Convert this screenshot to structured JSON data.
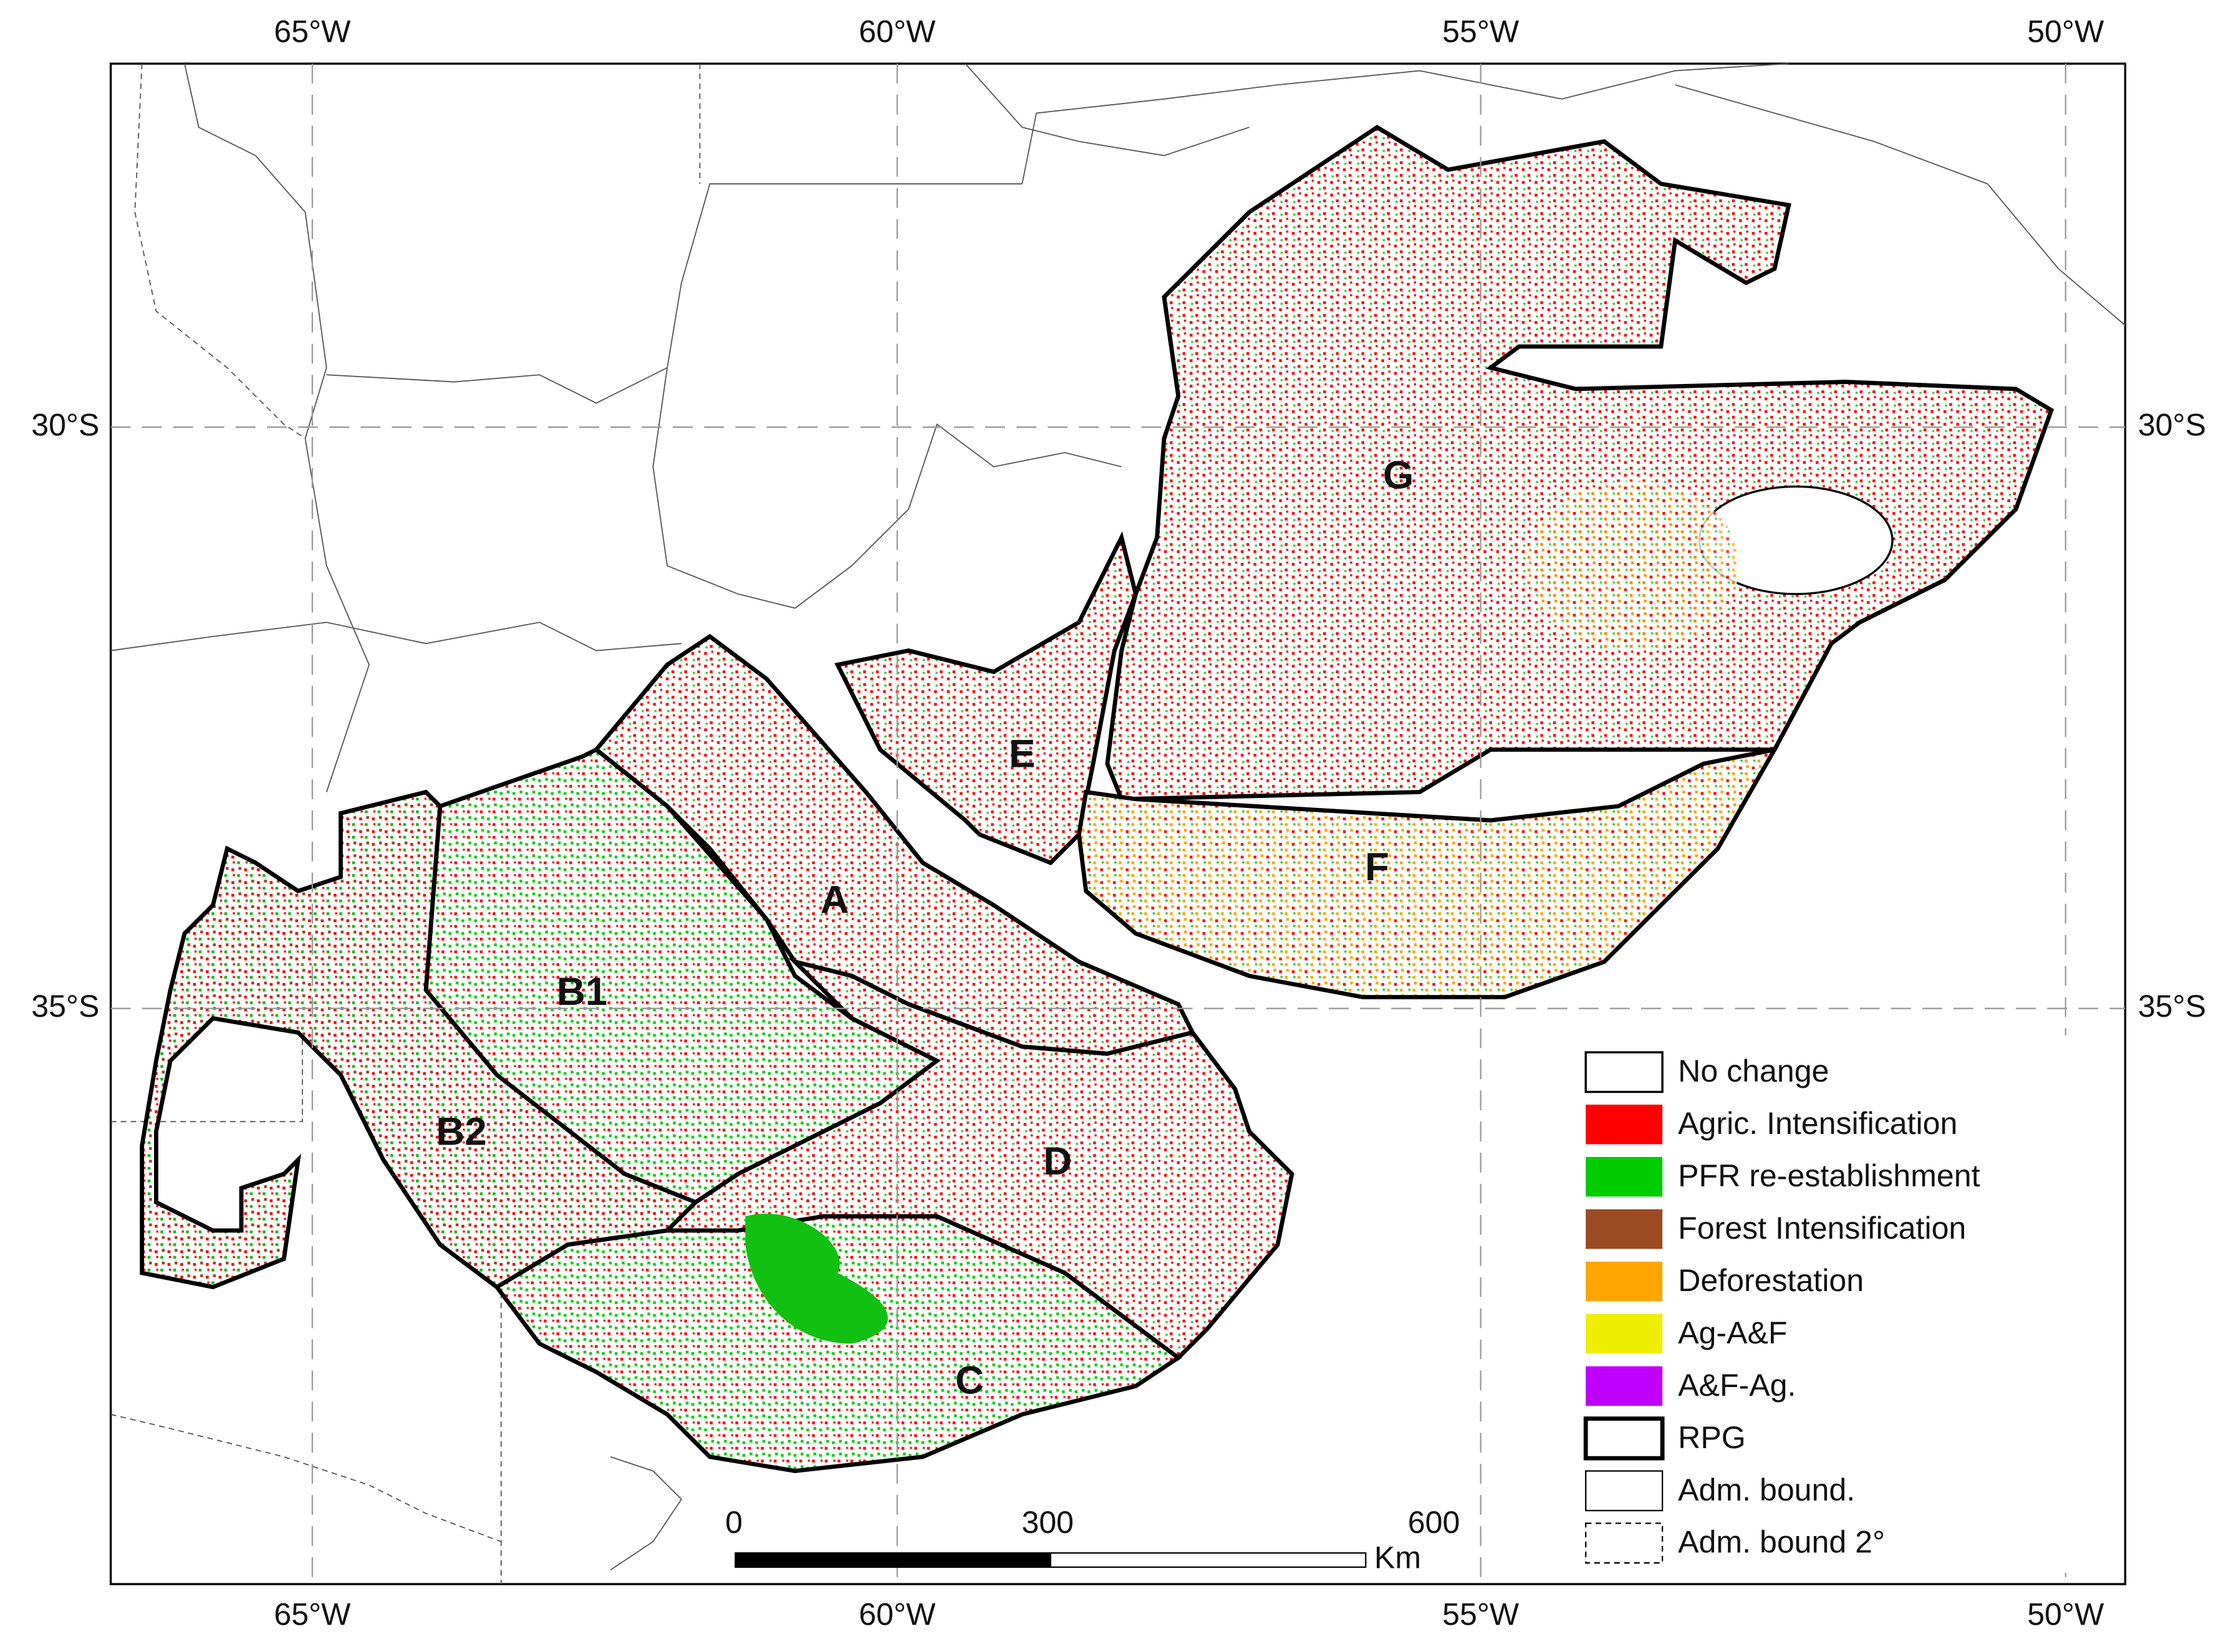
{
  "longitudes": [
    "65°W",
    "60°W",
    "55°W",
    "50°W"
  ],
  "latitudes": [
    "30°S",
    "35°S"
  ],
  "regions": [
    "G",
    "E",
    "F",
    "A",
    "B1",
    "B2",
    "D",
    "C"
  ],
  "legend": [
    {
      "label": "No change",
      "color": "#ffffff"
    },
    {
      "label": "Agric. Intensification",
      "color": "#ff0000"
    },
    {
      "label": "PFR re-establishment",
      "color": "#00cc00"
    },
    {
      "label": "Forest Intensification",
      "color": "#9c4a22"
    },
    {
      "label": "Deforestation",
      "color": "#ffa500"
    },
    {
      "label": "Ag-A&F",
      "color": "#eeee00"
    },
    {
      "label": "A&F-Ag.",
      "color": "#c000ff"
    },
    {
      "label": "RPG"
    },
    {
      "label": "Adm. bound."
    },
    {
      "label": "Adm. bound 2°"
    }
  ],
  "scale_bar": {
    "labels": [
      "0",
      "300",
      "600"
    ],
    "unit": "Km"
  }
}
